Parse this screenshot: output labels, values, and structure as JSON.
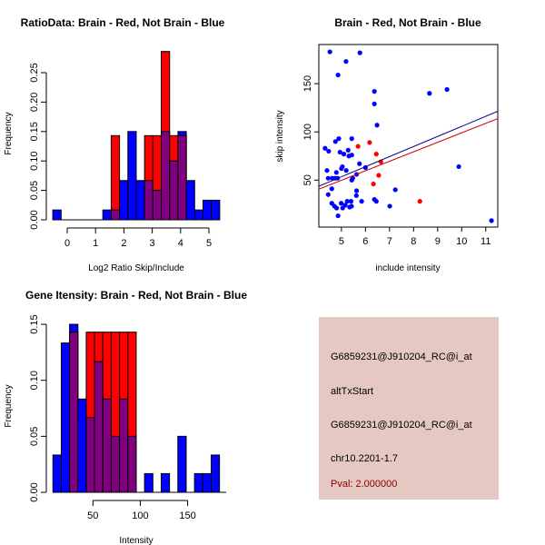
{
  "colors": {
    "blue": "#0000ff",
    "red": "#ff0000",
    "overlap": "#800080",
    "blue_line": "#00008b",
    "red_line": "#cd0000",
    "panel": "#e6c8c2",
    "pval": "#8b0000"
  },
  "chart_data": [
    {
      "type": "bar",
      "subtype": "overlaid-histogram",
      "title": "RatioData: Brain - Red, Not Brain - Blue",
      "xlabel": "Log2 Ratio Skip/Include",
      "ylabel": "Frequency",
      "bin_start": -0.51,
      "bin_width": 0.2945,
      "xticks": [
        "0",
        "1",
        "2",
        "3",
        "4",
        "5"
      ],
      "yticks": [
        "0.00",
        "0.05",
        "0.10",
        "0.15",
        "0.20",
        "0.25"
      ],
      "ylim": [
        0,
        0.29
      ],
      "series": [
        {
          "name": "Not Brain",
          "color": "blue",
          "values": [
            0.0167,
            0,
            0,
            0,
            0,
            0,
            0.0167,
            0.0167,
            0.0667,
            0.15,
            0.0667,
            0.0667,
            0.05,
            0.15,
            0.1,
            0.15,
            0.0667,
            0.0167,
            0.0333,
            0.0333
          ]
        },
        {
          "name": "Brain",
          "color": "red",
          "values": [
            0,
            0,
            0,
            0,
            0,
            0,
            0,
            0.143,
            0,
            0,
            0,
            0.143,
            0.143,
            0.286,
            0.143,
            0.143,
            0,
            0,
            0,
            0
          ]
        }
      ]
    },
    {
      "type": "scatter",
      "title": "Brain - Red, Not Brain - Blue",
      "xlabel": "include intensity",
      "ylabel": "skip intensity",
      "xlim": [
        4.06,
        11.5
      ],
      "ylim": [
        1.3,
        190.6
      ],
      "xticks": [
        "5",
        "6",
        "7",
        "8",
        "9",
        "10",
        "11"
      ],
      "yticks": [
        "50",
        "100",
        "150"
      ],
      "series": [
        {
          "name": "Not Brain",
          "color": "blue",
          "points": [
            [
              4.52,
              183
            ],
            [
              5.77,
              182
            ],
            [
              5.19,
              173
            ],
            [
              4.86,
              159
            ],
            [
              6.37,
              142
            ],
            [
              8.66,
              140
            ],
            [
              9.39,
              144
            ],
            [
              6.37,
              129
            ],
            [
              6.48,
              107
            ],
            [
              4.89,
              93
            ],
            [
              5.43,
              93
            ],
            [
              4.75,
              90
            ],
            [
              4.32,
              83
            ],
            [
              4.47,
              80
            ],
            [
              4.94,
              79
            ],
            [
              5.1,
              77
            ],
            [
              5.28,
              81
            ],
            [
              5.43,
              76
            ],
            [
              5.31,
              75
            ],
            [
              5.75,
              67
            ],
            [
              6.0,
              63
            ],
            [
              5.04,
              64
            ],
            [
              5.0,
              62
            ],
            [
              5.2,
              60
            ],
            [
              4.4,
              60
            ],
            [
              4.79,
              58
            ],
            [
              5.63,
              56
            ],
            [
              5.47,
              52
            ],
            [
              5.43,
              50
            ],
            [
              4.45,
              52
            ],
            [
              4.62,
              52
            ],
            [
              4.74,
              52
            ],
            [
              4.84,
              52
            ],
            [
              4.6,
              41
            ],
            [
              5.63,
              39
            ],
            [
              7.24,
              40
            ],
            [
              4.45,
              35
            ],
            [
              5.62,
              34
            ],
            [
              6.37,
              30
            ],
            [
              6.45,
              28
            ],
            [
              9.88,
              64
            ],
            [
              4.6,
              26
            ],
            [
              4.99,
              26
            ],
            [
              5.24,
              28
            ],
            [
              5.4,
              28
            ],
            [
              5.84,
              28
            ],
            [
              4.71,
              23
            ],
            [
              4.8,
              21
            ],
            [
              5.05,
              21
            ],
            [
              5.16,
              24
            ],
            [
              5.34,
              22
            ],
            [
              5.42,
              23
            ],
            [
              7.01,
              23
            ],
            [
              4.86,
              13
            ],
            [
              11.24,
              8
            ]
          ],
          "fit": {
            "intercept": 1.3,
            "slope": 10.44
          }
        },
        {
          "name": "Brain",
          "color": "red",
          "points": [
            [
              5.69,
              85
            ],
            [
              6.17,
              89
            ],
            [
              6.45,
              77
            ],
            [
              6.64,
              69
            ],
            [
              6.55,
              55
            ],
            [
              6.33,
              46
            ],
            [
              8.26,
              28
            ]
          ],
          "fit": {
            "intercept": 0.65,
            "slope": 9.84
          }
        }
      ]
    },
    {
      "type": "bar",
      "subtype": "overlaid-histogram",
      "title": "Gene Itensity: Brain - Red, Not Brain - Blue",
      "xlabel": "Intensity",
      "ylabel": "Frequency",
      "bin_start": 7.8,
      "bin_width": 8.79,
      "xticks": [
        "50",
        "100",
        "150"
      ],
      "yticks": [
        "0.00",
        "0.05",
        "0.10",
        "0.15"
      ],
      "ylim": [
        0,
        0.15
      ],
      "series": [
        {
          "name": "Not Brain",
          "color": "blue",
          "values": [
            0.0333,
            0.1333,
            0.15,
            0.0833,
            0.0667,
            0.1167,
            0.0833,
            0.05,
            0.0833,
            0.05,
            0,
            0.0167,
            0,
            0.0167,
            0,
            0.05,
            0,
            0.0167,
            0.0167,
            0.0333
          ]
        },
        {
          "name": "Brain",
          "color": "red",
          "values": [
            0,
            0,
            0.143,
            0,
            0.143,
            0.143,
            0.143,
            0.143,
            0.143,
            0.143,
            0,
            0,
            0,
            0,
            0,
            0,
            0,
            0,
            0,
            0
          ]
        }
      ]
    }
  ],
  "info_panel": {
    "probe": "G6859231@J910204_RC@i_at",
    "event": "altTxStart",
    "probe2": "G6859231@J910204_RC@i_at",
    "location": "chr10.2201-1.7",
    "pval": "Pval: 2.000000"
  }
}
